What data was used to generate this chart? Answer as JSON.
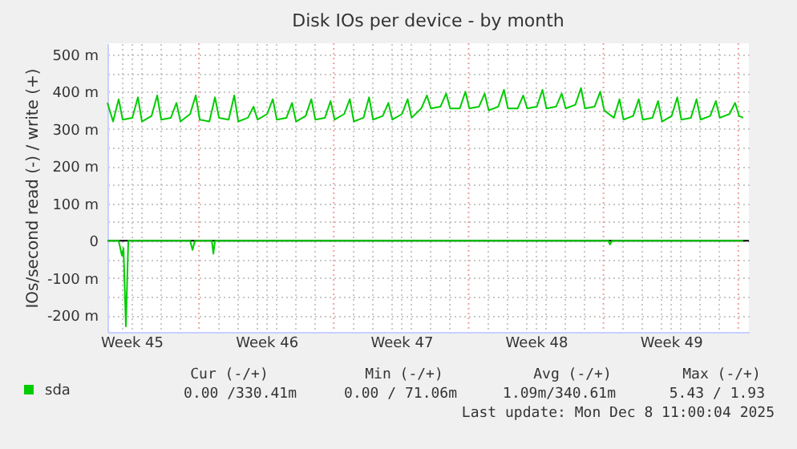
{
  "chart_data": {
    "type": "line",
    "title": "Disk IOs per device - by month",
    "ylabel": "IOs/second read (-) / write (+)",
    "xlim": [
      "2025-11-05T06:00",
      "2025-12-08T13:12"
    ],
    "ylim": [
      -245,
      530
    ],
    "xticks": [
      {
        "value": "2025-11-06T12:00",
        "label": "Week 45"
      },
      {
        "value": "2025-11-13T12:00",
        "label": "Week 46"
      },
      {
        "value": "2025-11-20T12:00",
        "label": "Week 47"
      },
      {
        "value": "2025-11-27T12:00",
        "label": "Week 48"
      },
      {
        "value": "2025-12-04T12:00",
        "label": "Week 49"
      },
      {
        "value": "2025-11-06",
        "label": null
      },
      {
        "value": "2025-11-07",
        "label": null
      },
      {
        "value": "2025-11-08",
        "label": null
      },
      {
        "value": "2025-11-09",
        "label": null
      },
      {
        "value": "2025-11-11",
        "label": null
      },
      {
        "value": "2025-11-12",
        "label": null
      },
      {
        "value": "2025-11-13",
        "label": null
      },
      {
        "value": "2025-11-14",
        "label": null
      },
      {
        "value": "2025-11-15",
        "label": null
      },
      {
        "value": "2025-11-16",
        "label": null
      },
      {
        "value": "2025-11-18",
        "label": null
      },
      {
        "value": "2025-11-19",
        "label": null
      },
      {
        "value": "2025-11-20",
        "label": null
      },
      {
        "value": "2025-11-21",
        "label": null
      },
      {
        "value": "2025-11-22",
        "label": null
      },
      {
        "value": "2025-11-23",
        "label": null
      },
      {
        "value": "2025-11-25",
        "label": null
      },
      {
        "value": "2025-11-26",
        "label": null
      },
      {
        "value": "2025-11-27",
        "label": null
      },
      {
        "value": "2025-11-28",
        "label": null
      },
      {
        "value": "2025-11-29",
        "label": null
      },
      {
        "value": "2025-11-30",
        "label": null
      },
      {
        "value": "2025-12-02",
        "label": null
      },
      {
        "value": "2025-12-03",
        "label": null
      },
      {
        "value": "2025-12-04",
        "label": null
      },
      {
        "value": "2025-12-05",
        "label": null
      },
      {
        "value": "2025-12-06",
        "label": null
      },
      {
        "value": "2025-12-07",
        "label": null
      }
    ],
    "yticks": [
      {
        "value": -200,
        "label": "-200 m"
      },
      {
        "value": -100,
        "label": "-100 m"
      },
      0,
      {
        "value": 100,
        "label": "100 m"
      },
      {
        "value": 200,
        "label": "200 m"
      },
      {
        "value": 300,
        "label": "300 m"
      },
      {
        "value": 400,
        "label": "400 m"
      },
      {
        "value": 500,
        "label": "500 m"
      },
      {
        "value": -150,
        "label": null
      },
      {
        "value": -50,
        "label": null
      },
      {
        "value": 50,
        "label": null
      },
      {
        "value": 150,
        "label": null
      },
      {
        "value": 250,
        "label": null
      },
      {
        "value": 350,
        "label": null
      },
      {
        "value": 450,
        "label": null
      }
    ],
    "grid": true,
    "legend": "bottom left",
    "line_style": "solid",
    "marker": "none",
    "ref_lines": [
      {
        "axis": "y",
        "value": 0,
        "color": "#000000",
        "line_style": "solid"
      },
      {
        "axis": "x",
        "value": "2025-11-10",
        "color": "#f0a0a0",
        "line_style": "dotted"
      },
      {
        "axis": "x",
        "value": "2025-11-17",
        "color": "#f0a0a0",
        "line_style": "dotted"
      },
      {
        "axis": "x",
        "value": "2025-11-24",
        "color": "#f0a0a0",
        "line_style": "dotted"
      },
      {
        "axis": "x",
        "value": "2025-12-01",
        "color": "#f0a0a0",
        "line_style": "dotted"
      },
      {
        "axis": "x",
        "value": "2025-12-08",
        "color": "#f0a0a0",
        "line_style": "dotted"
      }
    ],
    "series": [
      {
        "name": "sda",
        "color": "#00cc00",
        "x": [
          "2025-11-05T06:00",
          "2025-11-05T13:00",
          "2025-11-05T20:00",
          "2025-11-06T01:00",
          "2025-11-06T13:00",
          "2025-11-06T20:00",
          "2025-11-07T01:00",
          "2025-11-07T13:00",
          "2025-11-07T20:00",
          "2025-11-08T01:00",
          "2025-11-08T13:00",
          "2025-11-08T20:00",
          "2025-11-09T01:00",
          "2025-11-09T13:00",
          "2025-11-09T20:00",
          "2025-11-10T01:00",
          "2025-11-10T13:00",
          "2025-11-10T20:00",
          "2025-11-11T01:00",
          "2025-11-11T13:00",
          "2025-11-11T20:00",
          "2025-11-12T01:00",
          "2025-11-12T13:00",
          "2025-11-12T20:00",
          "2025-11-13T01:00",
          "2025-11-13T13:00",
          "2025-11-13T20:00",
          "2025-11-14T01:00",
          "2025-11-14T13:00",
          "2025-11-14T20:00",
          "2025-11-15T01:00",
          "2025-11-15T13:00",
          "2025-11-15T20:00",
          "2025-11-16T01:00",
          "2025-11-16T13:00",
          "2025-11-16T20:00",
          "2025-11-17T01:00",
          "2025-11-17T13:00",
          "2025-11-17T20:00",
          "2025-11-18T01:00",
          "2025-11-18T13:00",
          "2025-11-18T20:00",
          "2025-11-19T01:00",
          "2025-11-19T13:00",
          "2025-11-19T20:00",
          "2025-11-20T01:00",
          "2025-11-20T13:00",
          "2025-11-20T20:00",
          "2025-11-21T01:00",
          "2025-11-21T13:00",
          "2025-11-21T20:00",
          "2025-11-22T01:00",
          "2025-11-22T13:00",
          "2025-11-22T20:00",
          "2025-11-23T01:00",
          "2025-11-23T13:00",
          "2025-11-23T20:00",
          "2025-11-24T01:00",
          "2025-11-24T13:00",
          "2025-11-24T20:00",
          "2025-11-25T01:00",
          "2025-11-25T13:00",
          "2025-11-25T20:00",
          "2025-11-26T01:00",
          "2025-11-26T13:00",
          "2025-11-26T20:00",
          "2025-11-27T01:00",
          "2025-11-27T13:00",
          "2025-11-27T20:00",
          "2025-11-28T01:00",
          "2025-11-28T13:00",
          "2025-11-28T20:00",
          "2025-11-29T01:00",
          "2025-11-29T13:00",
          "2025-11-29T20:00",
          "2025-11-30T01:00",
          "2025-11-30T13:00",
          "2025-11-30T20:00",
          "2025-12-01T01:00",
          "2025-12-01T13:00",
          "2025-12-01T20:00",
          "2025-12-02T01:00",
          "2025-12-02T13:00",
          "2025-12-02T20:00",
          "2025-12-03T01:00",
          "2025-12-03T13:00",
          "2025-12-03T20:00",
          "2025-12-04T01:00",
          "2025-12-04T13:00",
          "2025-12-04T20:00",
          "2025-12-05T01:00",
          "2025-12-05T13:00",
          "2025-12-05T20:00",
          "2025-12-06T01:00",
          "2025-12-06T13:00",
          "2025-12-06T20:00",
          "2025-12-07T01:00",
          "2025-12-07T13:00",
          "2025-12-07T20:00",
          "2025-12-08T01:00",
          "2025-12-08T06:00"
        ],
        "values": [
          370,
          320,
          380,
          325,
          330,
          385,
          320,
          335,
          390,
          325,
          330,
          370,
          320,
          340,
          390,
          325,
          320,
          385,
          330,
          325,
          390,
          320,
          330,
          360,
          325,
          340,
          380,
          325,
          330,
          370,
          320,
          335,
          380,
          325,
          330,
          375,
          325,
          340,
          380,
          320,
          330,
          385,
          325,
          335,
          370,
          325,
          340,
          380,
          330,
          355,
          390,
          355,
          360,
          395,
          355,
          355,
          400,
          355,
          360,
          395,
          350,
          360,
          405,
          355,
          355,
          390,
          355,
          360,
          405,
          355,
          360,
          395,
          355,
          365,
          410,
          355,
          360,
          400,
          350,
          330,
          380,
          325,
          335,
          380,
          325,
          330,
          375,
          320,
          335,
          385,
          325,
          330,
          380,
          325,
          335,
          375,
          330,
          340,
          370,
          335,
          330
        ]
      },
      {
        "color": "#00cc00",
        "x": [
          "2025-11-05T06:00",
          "2025-11-05T20:00",
          "2025-11-06T00:00",
          "2025-11-06T02:00",
          "2025-11-06T05:00",
          "2025-11-06T08:00",
          "2025-11-09T13:00",
          "2025-11-09T16:00",
          "2025-11-09T19:00",
          "2025-11-10T16:00",
          "2025-11-10T18:00",
          "2025-11-10T20:00",
          "2025-12-01T06:00",
          "2025-12-01T08:00",
          "2025-12-01T11:00",
          "2025-12-08T06:00"
        ],
        "values": [
          0,
          0,
          -40,
          -20,
          -230,
          0,
          0,
          -25,
          0,
          0,
          -35,
          0,
          0,
          -10,
          0,
          0
        ]
      }
    ],
    "annotations": [
      "Cur (-/+)",
      "Min (-/+)",
      "Avg (-/+)",
      "Max (-/+)",
      "0.00 /330.41m",
      "0.00 / 71.06m",
      "1.09m/340.61m",
      "5.43 /  1.93",
      "Last update: Mon Dec  8 11:00:04 2025"
    ]
  }
}
